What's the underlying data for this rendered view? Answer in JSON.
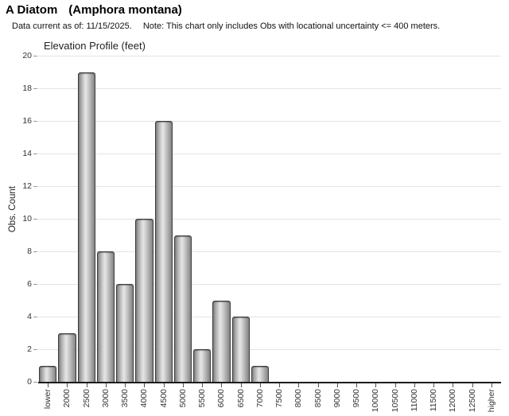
{
  "header": {
    "common_name": "A Diatom",
    "scientific_name": "(Amphora montana)",
    "data_current": "Data current as of: 11/15/2025.",
    "note": "Note: This chart only includes Obs with locational uncertainty <= 400 meters."
  },
  "chart_data": {
    "type": "bar",
    "title": "Elevation Profile (feet)",
    "xlabel": "",
    "ylabel": "Obs. Count",
    "categories": [
      "lower",
      "2000",
      "2500",
      "3000",
      "3500",
      "4000",
      "4500",
      "5000",
      "5500",
      "6000",
      "6500",
      "7000",
      "7500",
      "8000",
      "8500",
      "9000",
      "9500",
      "10000",
      "10500",
      "11000",
      "11500",
      "12000",
      "12500",
      "higher"
    ],
    "values": [
      1,
      3,
      19,
      8,
      6,
      10,
      16,
      9,
      2,
      5,
      4,
      1,
      0,
      0,
      0,
      0,
      0,
      0,
      0,
      0,
      0,
      0,
      0,
      0
    ],
    "ylim": [
      0,
      20
    ],
    "yticks": [
      0,
      2,
      4,
      6,
      8,
      10,
      12,
      14,
      16,
      18,
      20
    ],
    "grid": true,
    "legend_position": "none",
    "bar_fill": "#cccccc",
    "bar_border": "#3c3c3c",
    "gridline_color": "#e4e4e4",
    "axis_color": "#1c1c1c"
  }
}
